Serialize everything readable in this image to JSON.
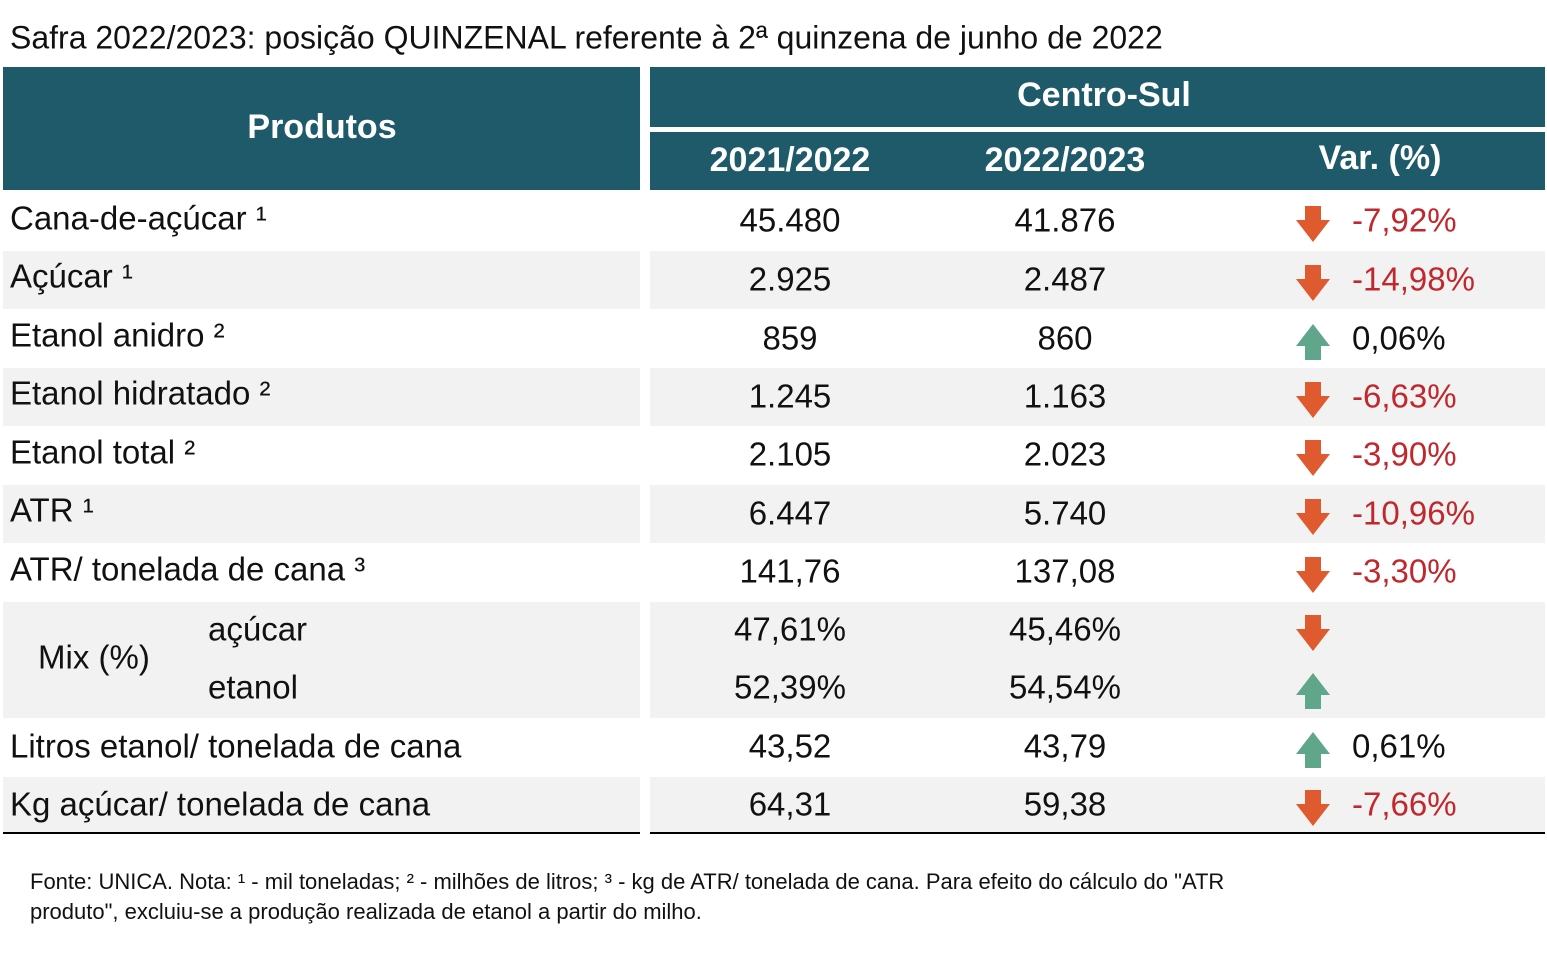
{
  "title": "Safra 2022/2023: posição QUINZENAL referente à 2ª quinzena de junho de 2022",
  "table": {
    "header": {
      "products": "Produtos",
      "region": "Centro-Sul",
      "columns": [
        "2021/2022",
        "2022/2023",
        "Var. (%)"
      ]
    },
    "rows": [
      [
        "Cana-de-açúcar ¹",
        "45.480",
        "41.876",
        "-7,92%"
      ],
      [
        "Açúcar ¹",
        "2.925",
        "2.487",
        "-14,98%"
      ],
      [
        "Etanol anidro ²",
        "859",
        "860",
        "0,06%"
      ],
      [
        "Etanol hidratado ²",
        "1.245",
        "1.163",
        "-6,63%"
      ],
      [
        "Etanol total ²",
        "2.105",
        "2.023",
        "-3,90%"
      ],
      [
        "ATR ¹",
        "6.447",
        "5.740",
        "-10,96%"
      ],
      [
        "ATR/ tonelada de cana ³",
        "141,76",
        "137,08",
        "-3,30%"
      ],
      [
        "Litros etanol/ tonelada de cana",
        "43,52",
        "43,79",
        "0,61%"
      ],
      [
        "Kg açúcar/ tonelada de cana",
        "64,31",
        "59,38",
        "-7,66%"
      ]
    ],
    "mix": {
      "label": "Mix (%)",
      "rows": [
        [
          "açúcar",
          "47,61%",
          "45,46%"
        ],
        [
          "etanol",
          "52,39%",
          "54,54%"
        ]
      ]
    }
  },
  "footnote": [
    "Fonte: UNICA. Nota: ¹ - mil toneladas; ² - milhões de litros; ³ - kg de ATR/ tonelada de cana. Para efeito do cálculo do \"ATR",
    "produto\", excluiu-se a produção realizada de etanol a partir do milho."
  ]
}
